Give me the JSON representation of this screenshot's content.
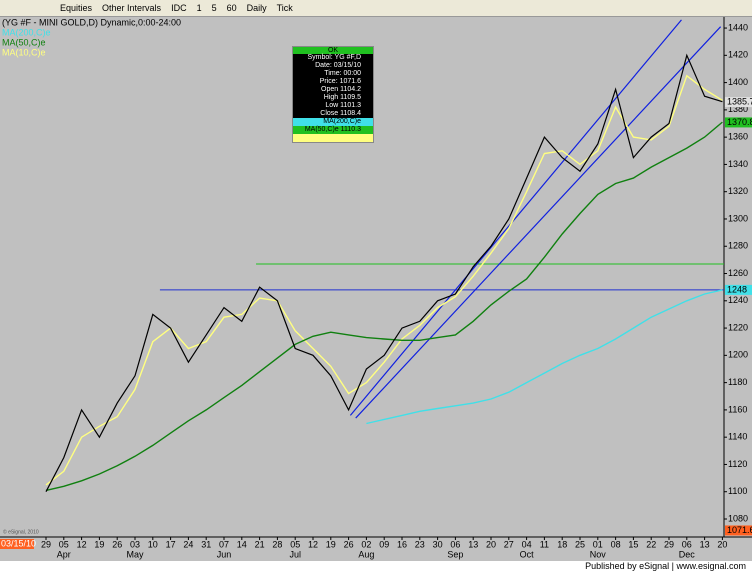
{
  "toolbar": {
    "items": [
      "Equities",
      "Other Intervals",
      "IDC",
      "1",
      "5",
      "60",
      "Daily",
      "Tick"
    ]
  },
  "chart_data": {
    "type": "line",
    "title": "(YG #F - MINI GOLD,D) Dynamic,0:00-24:00",
    "categories": [
      "29",
      "05",
      "12",
      "19",
      "26",
      "03",
      "10",
      "17",
      "24",
      "31",
      "07",
      "14",
      "21",
      "28",
      "05",
      "12",
      "19",
      "26",
      "02",
      "09",
      "16",
      "23",
      "30",
      "06",
      "13",
      "20",
      "27",
      "04",
      "11",
      "18",
      "25",
      "01",
      "08",
      "15",
      "22",
      "29",
      "06",
      "13",
      "20"
    ],
    "month_labels": [
      "Apr",
      "May",
      "Jun",
      "Jul",
      "Aug",
      "Sep",
      "Oct",
      "Nov",
      "Dec"
    ],
    "series": [
      {
        "color": "#000000",
        "values": [
          1100,
          1125,
          1160,
          1140,
          1165,
          1185,
          1230,
          1220,
          1195,
          1215,
          1235,
          1225,
          1250,
          1240,
          1205,
          1200,
          1185,
          1160,
          1190,
          1200,
          1220,
          1225,
          1240,
          1245,
          1265,
          1280,
          1300,
          1330,
          1360,
          1345,
          1335,
          1355,
          1395,
          1345,
          1360,
          1370,
          1420,
          1390,
          1386
        ]
      },
      {
        "name": "MA(200,C)e",
        "color": "#40e0e8",
        "values": [
          null,
          null,
          null,
          null,
          null,
          null,
          null,
          null,
          null,
          null,
          null,
          null,
          null,
          null,
          null,
          null,
          null,
          null,
          1150,
          1153,
          1156,
          1159,
          1161,
          1163,
          1165,
          1168,
          1173,
          1180,
          1187,
          1194,
          1200,
          1205,
          1212,
          1220,
          1228,
          1234,
          1240,
          1245,
          1248
        ]
      },
      {
        "name": "MA(50,C)e",
        "color": "#108010",
        "values": [
          1101,
          1104,
          1108,
          1113,
          1119,
          1126,
          1134,
          1143,
          1152,
          1160,
          1169,
          1178,
          1188,
          1198,
          1208,
          1214,
          1217,
          1215,
          1213,
          1212,
          1211,
          1211,
          1213,
          1215,
          1225,
          1237,
          1247,
          1256,
          1272,
          1289,
          1304,
          1318,
          1326,
          1330,
          1338,
          1345,
          1352,
          1360,
          1371
        ]
      },
      {
        "name": "MA(10,C)e",
        "color": "#ffff80",
        "values": [
          1105,
          1115,
          1140,
          1148,
          1155,
          1175,
          1210,
          1220,
          1205,
          1210,
          1228,
          1230,
          1242,
          1240,
          1218,
          1205,
          1192,
          1172,
          1180,
          1195,
          1212,
          1222,
          1235,
          1243,
          1258,
          1275,
          1293,
          1320,
          1348,
          1350,
          1340,
          1350,
          1382,
          1360,
          1358,
          1368,
          1405,
          1395,
          1387
        ]
      }
    ],
    "ylim": [
      1066.8,
      1448.1
    ],
    "yticks": [
      1080,
      1100,
      1120,
      1140,
      1160,
      1180,
      1200,
      1220,
      1240,
      1260,
      1280,
      1300,
      1320,
      1340,
      1360,
      1380,
      1400,
      1420,
      1440
    ],
    "price_markers": [
      {
        "value": 1385.7,
        "color": "#e0e0e0"
      },
      {
        "value": 1370.8,
        "color": "#20c020"
      },
      {
        "value": 1248,
        "color": "#40e0e8"
      },
      {
        "value": 1071.6,
        "color": "#ff6020"
      }
    ],
    "levels": [
      {
        "value": 1267,
        "color": "#20c020",
        "start": 11.8
      },
      {
        "value": 1248,
        "color": "#2030d0",
        "start": 6.4
      }
    ],
    "channel": [
      {
        "start": [
          17.1,
          1156
        ],
        "end": [
          35.7,
          1446
        ]
      },
      {
        "start": [
          17.4,
          1154
        ],
        "end": [
          37.9,
          1441
        ]
      }
    ],
    "date_marker": "03/15/10",
    "copyright": "© eSignal, 2010"
  },
  "data_window": {
    "header": "OK",
    "rows": [
      "Symbol: YG #F,D",
      "Date: 03/15/10",
      "Time: 00:00",
      "Price: 1071.6",
      "Open 1104.2",
      "High 1109.5",
      "Low 1101.3",
      "Close 1108.4",
      "MA(200,C)e",
      "MA(50,C)e 1110.3"
    ]
  },
  "footer": "Published by eSignal | www.esignal.com"
}
